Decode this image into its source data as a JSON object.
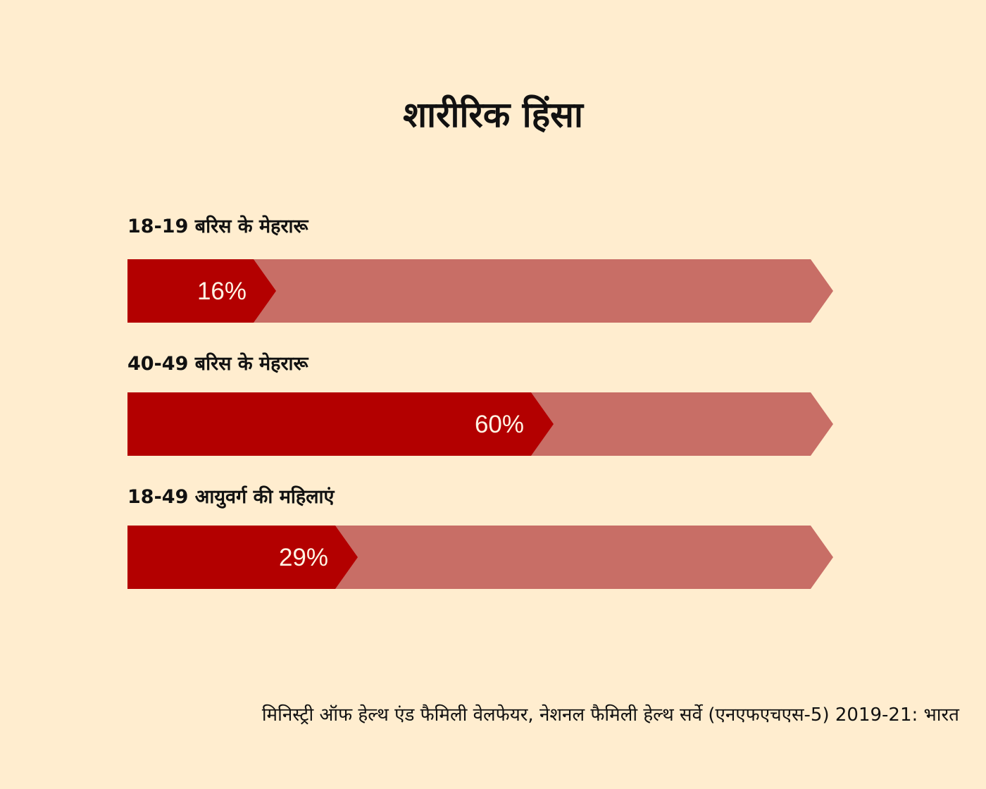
{
  "title": "शारीरिक हिंसा",
  "source": "मिनिस्ट्री ऑफ हेल्थ एंड फैमिली वेलफेयर, नेशनल फैमिली हेल्थ सर्वे (एनएफएचएस-5) 2019-21: भारत",
  "colors": {
    "background": "#ffedcf",
    "fill": "#b30000",
    "track": "#c86e66",
    "value_text": "#fff4e4"
  },
  "chart_data": {
    "type": "bar",
    "orientation": "horizontal",
    "categories": [
      "18-19 बरिस के मेहरारू",
      "40-49 बरिस के मेहरारू",
      "18-49 आयुवर्ग की महिलाएं"
    ],
    "values": [
      16,
      60,
      29
    ],
    "value_labels": [
      "16%",
      "60%",
      "29%"
    ],
    "unit": "%",
    "xlim": [
      0,
      100
    ],
    "title": "शारीरिक हिंसा",
    "xlabel": "",
    "ylabel": "",
    "grid": false,
    "legend": "none"
  }
}
